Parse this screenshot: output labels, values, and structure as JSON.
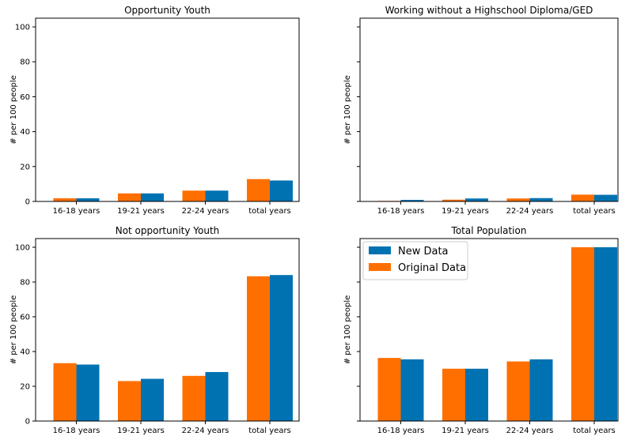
{
  "chart_data": [
    {
      "type": "bar",
      "title": "Opportunity Youth",
      "ylabel": "# per 100 people",
      "categories": [
        "16-18 years",
        "19-21 years",
        "22-24 years",
        "total years"
      ],
      "series": [
        {
          "name": "Original Data",
          "values": [
            1.8,
            4.6,
            6.2,
            12.8
          ]
        },
        {
          "name": "New Data",
          "values": [
            1.8,
            4.6,
            6.2,
            12.0
          ]
        }
      ],
      "ylim": [
        0,
        105
      ],
      "yticks": [
        0,
        20,
        40,
        60,
        80,
        100
      ],
      "show_ytick_labels": true,
      "legend": "none"
    },
    {
      "type": "bar",
      "title": "Working without a Highschool Diploma/GED",
      "ylabel": "# per 100 people",
      "categories": [
        "16-18 years",
        "19-21 years",
        "22-24 years",
        "total years"
      ],
      "series": [
        {
          "name": "Original Data",
          "values": [
            0.3,
            1.0,
            1.7,
            3.9
          ]
        },
        {
          "name": "New Data",
          "values": [
            0.9,
            1.7,
            1.9,
            3.8
          ]
        }
      ],
      "ylim": [
        0,
        105
      ],
      "yticks": [
        0,
        20,
        40,
        60,
        80,
        100
      ],
      "show_ytick_labels": false,
      "legend": "none"
    },
    {
      "type": "bar",
      "title": "Not opportunity Youth",
      "ylabel": "# per 100 people",
      "categories": [
        "16-18 years",
        "19-21 years",
        "22-24 years",
        "total years"
      ],
      "series": [
        {
          "name": "Original Data",
          "values": [
            33.3,
            23.0,
            26.0,
            83.3
          ]
        },
        {
          "name": "New Data",
          "values": [
            32.5,
            24.3,
            28.2,
            84.0
          ]
        }
      ],
      "ylim": [
        0,
        105
      ],
      "yticks": [
        0,
        20,
        40,
        60,
        80,
        100
      ],
      "show_ytick_labels": true,
      "legend": "none"
    },
    {
      "type": "bar",
      "title": "Total Population",
      "ylabel": "# per 100 people",
      "categories": [
        "16-18 years",
        "19-21 years",
        "22-24 years",
        "total years"
      ],
      "series": [
        {
          "name": "Original Data",
          "values": [
            36.3,
            30.1,
            34.3,
            100.0
          ]
        },
        {
          "name": "New Data",
          "values": [
            35.5,
            30.1,
            35.5,
            100.0
          ]
        }
      ],
      "ylim": [
        0,
        105
      ],
      "yticks": [
        0,
        20,
        40,
        60,
        80,
        100
      ],
      "show_ytick_labels": false,
      "legend": "top-left"
    }
  ],
  "legend_entries": [
    "New Data",
    "Original Data"
  ],
  "colors": {
    "Original Data": "#ff7f0e",
    "New Data": "#1f77b4",
    "original_fill": "#ff6f00",
    "new_fill": "#0072b2",
    "axes": "#000000",
    "legend_border": "#cccccc"
  }
}
